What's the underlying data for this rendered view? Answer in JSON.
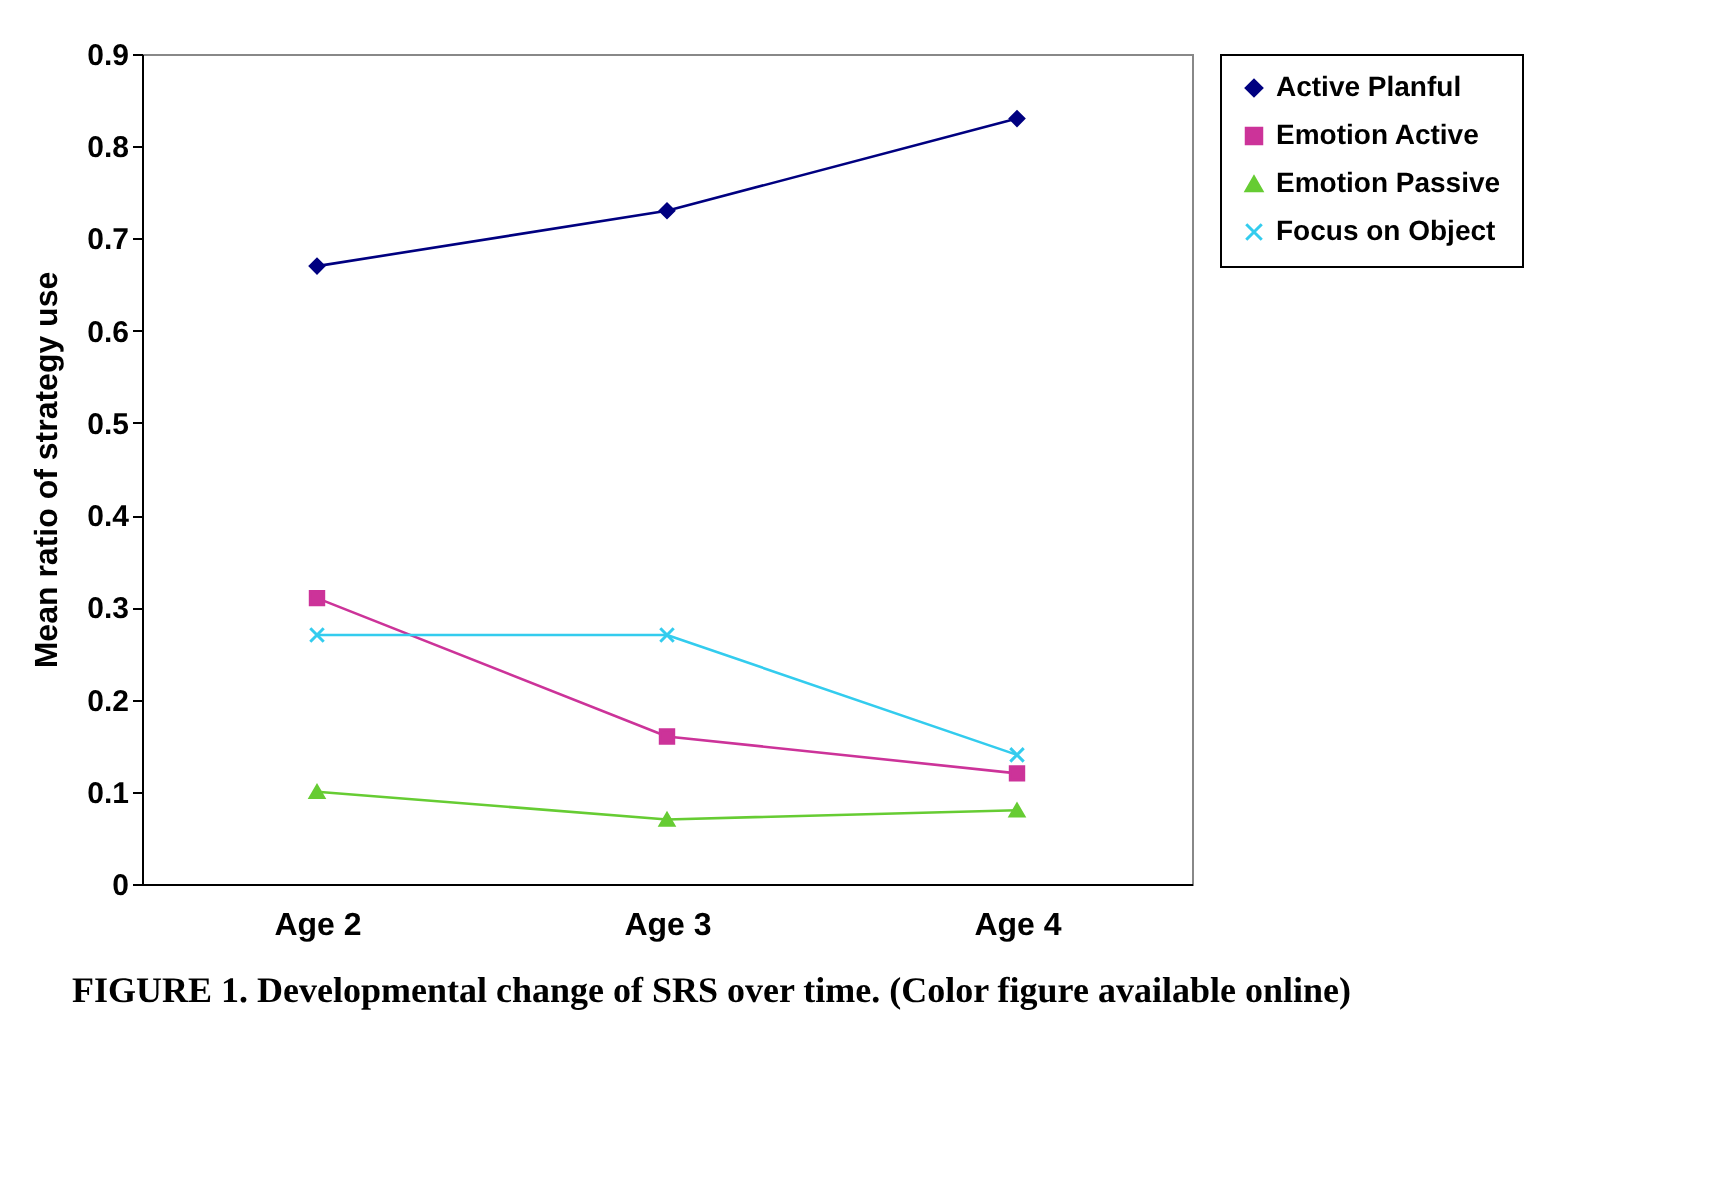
{
  "chart_data": {
    "type": "line",
    "ylabel": "Mean ratio of strategy use",
    "categories": [
      "Age 2",
      "Age 3",
      "Age 4"
    ],
    "series": [
      {
        "name": "Active Planful",
        "color": "#000080",
        "marker": "diamond",
        "values": [
          0.67,
          0.73,
          0.83
        ]
      },
      {
        "name": "Emotion Active",
        "color": "#cc3399",
        "marker": "square",
        "values": [
          0.31,
          0.16,
          0.12
        ]
      },
      {
        "name": "Emotion Passive",
        "color": "#66cc33",
        "marker": "triangle",
        "values": [
          0.1,
          0.07,
          0.08
        ]
      },
      {
        "name": "Focus on Object",
        "color": "#33ccee",
        "marker": "cross",
        "values": [
          0.27,
          0.27,
          0.14
        ]
      }
    ],
    "ylim": [
      0,
      0.9
    ],
    "yticks": [
      0,
      0.1,
      0.2,
      0.3,
      0.4,
      0.5,
      0.6,
      0.7,
      0.8,
      0.9
    ],
    "grid": false,
    "legend": "right",
    "annotations": [
      "FIGURE 1. Developmental change of SRS over time. (Color figure available online)"
    ]
  }
}
